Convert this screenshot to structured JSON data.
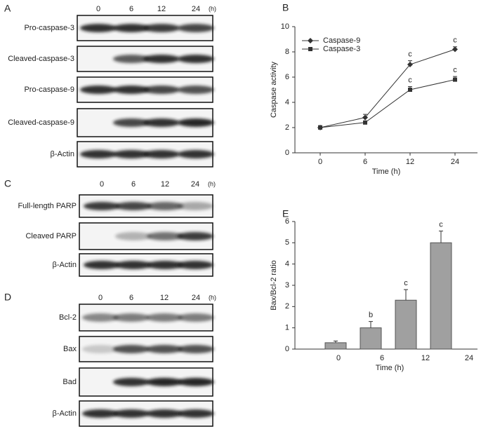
{
  "blots": [
    {
      "label": "A",
      "lanes": [
        "0",
        "6",
        "12",
        "24"
      ],
      "unit": "(h)",
      "rows": [
        "Pro-caspase-3",
        "Cleaved-caspase-3",
        "Pro-caspase-9",
        "Cleaved-caspase-9",
        "β-Actin"
      ]
    },
    {
      "label": "C",
      "lanes": [
        "0",
        "6",
        "12",
        "24"
      ],
      "unit": "(h)",
      "rows": [
        "Full-length PARP",
        "Cleaved PARP",
        "β-Actin"
      ]
    },
    {
      "label": "D",
      "lanes": [
        "0",
        "6",
        "12",
        "24"
      ],
      "unit": "(h)",
      "rows": [
        "Bcl-2",
        "Bax",
        "Bad",
        "β-Actin"
      ]
    }
  ],
  "chart_data": [
    {
      "type": "line",
      "panel_label": "B",
      "xlabel": "Time (h)",
      "ylabel": "Caspase activity",
      "categories": [
        "0",
        "6",
        "12",
        "24"
      ],
      "ylim": [
        0,
        10
      ],
      "yticks": [
        0,
        2,
        4,
        6,
        8,
        10
      ],
      "legend": "upper-left",
      "series": [
        {
          "name": "Caspase-9",
          "color": "#333333",
          "marker": "diamond",
          "values": [
            2,
            2.8,
            7,
            8.2
          ],
          "errors": [
            0.15,
            0.25,
            0.3,
            0.2
          ],
          "labels": [
            null,
            null,
            "c",
            "c"
          ]
        },
        {
          "name": "Caspase-3",
          "color": "#333333",
          "marker": "square",
          "values": [
            2,
            2.4,
            5,
            5.8
          ],
          "errors": [
            0.15,
            0.1,
            0.25,
            0.25
          ],
          "labels": [
            null,
            null,
            "c",
            "c"
          ]
        }
      ]
    },
    {
      "type": "bar",
      "panel_label": "E",
      "xlabel": "Time (h)",
      "ylabel": "Bax/Bcl-2 ratio",
      "categories": [
        "0",
        "6",
        "12",
        "24"
      ],
      "ylim": [
        0,
        6
      ],
      "yticks": [
        0,
        1,
        2,
        3,
        4,
        5,
        6
      ],
      "color": "#a0a0a0",
      "values": [
        0.3,
        1.0,
        2.3,
        5.0
      ],
      "errors": [
        0.08,
        0.3,
        0.5,
        0.55
      ],
      "labels": [
        null,
        "b",
        "c",
        "c"
      ]
    }
  ]
}
